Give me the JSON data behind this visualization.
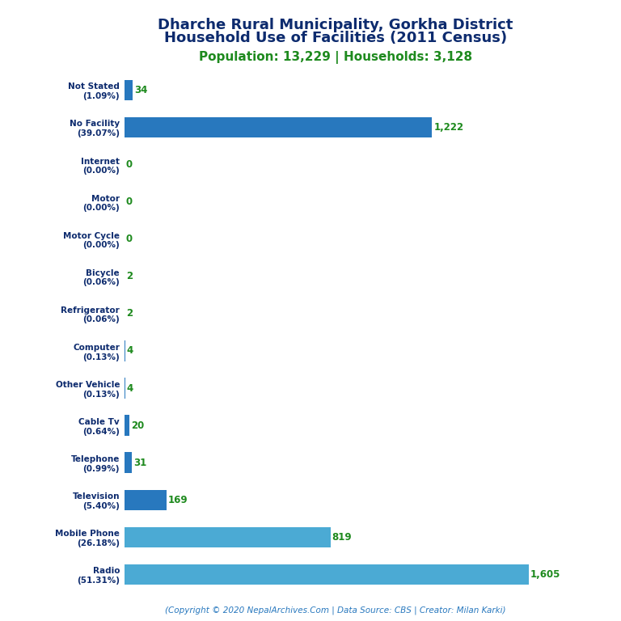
{
  "title_line1": "Dharche Rural Municipality, Gorkha District",
  "title_line2": "Household Use of Facilities (2011 Census)",
  "subtitle": "Population: 13,229 | Households: 3,128",
  "footer": "(Copyright © 2020 NepalArchives.Com | Data Source: CBS | Creator: Milan Karki)",
  "categories": [
    "Not Stated\n(1.09%)",
    "No Facility\n(39.07%)",
    "Internet\n(0.00%)",
    "Motor\n(0.00%)",
    "Motor Cycle\n(0.00%)",
    "Bicycle\n(0.06%)",
    "Refrigerator\n(0.06%)",
    "Computer\n(0.13%)",
    "Other Vehicle\n(0.13%)",
    "Cable Tv\n(0.64%)",
    "Telephone\n(0.99%)",
    "Television\n(5.40%)",
    "Mobile Phone\n(26.18%)",
    "Radio\n(51.31%)"
  ],
  "values": [
    34,
    1222,
    0,
    0,
    0,
    2,
    2,
    4,
    4,
    20,
    31,
    169,
    819,
    1605
  ],
  "bar_colors": [
    "#2878be",
    "#2878be",
    "#2878be",
    "#2878be",
    "#2878be",
    "#2878be",
    "#2878be",
    "#2878be",
    "#2878be",
    "#2878be",
    "#2878be",
    "#2878be",
    "#4baad4",
    "#4baad4"
  ],
  "title_color": "#0d2b6e",
  "subtitle_color": "#1e8a1e",
  "footer_color": "#2878be",
  "value_color": "#1e8a1e",
  "label_color": "#0d2b6e",
  "background_color": "#ffffff",
  "xlim": [
    0,
    1750
  ]
}
